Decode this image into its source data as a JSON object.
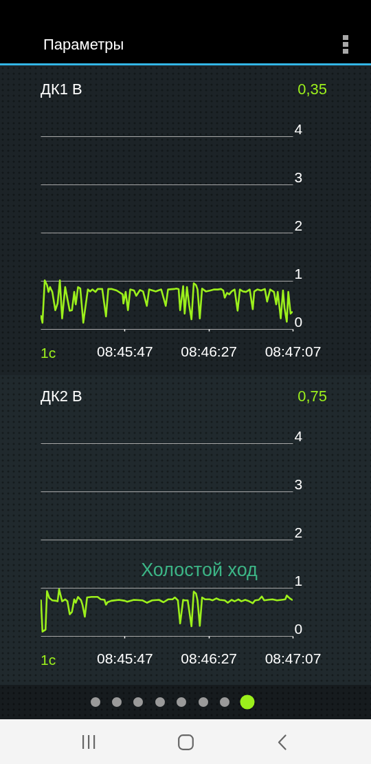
{
  "chart_data": [
    {
      "type": "line",
      "title": "ДК1 В",
      "annotations": [
        "Параметры",
        "0,35",
        "1с"
      ],
      "x": [
        8.752,
        8.7522,
        8.7525,
        8.7528,
        8.753,
        8.7532,
        8.7535,
        8.7539,
        8.7542,
        8.7545,
        8.7548,
        8.7552,
        8.7558,
        8.7561,
        8.7564,
        8.7566,
        8.7569,
        8.7572,
        8.7576,
        8.7578,
        8.7582,
        8.7585,
        8.7588,
        8.7592,
        8.7595,
        8.7601,
        8.7606,
        8.7609,
        8.7614,
        8.762,
        8.7628,
        8.7629,
        8.7632,
        8.7635,
        8.7638,
        8.7643,
        8.7646,
        8.7651,
        8.7655,
        8.766,
        8.7663,
        8.7672,
        8.7675,
        8.7679,
        8.7685,
        8.7688,
        8.7696,
        8.7699,
        8.7702,
        8.7704,
        8.7708,
        8.771,
        8.7713,
        8.7716,
        8.7719,
        8.7722,
        8.7725,
        8.7727,
        8.773,
        8.7733,
        8.7738,
        8.7744,
        8.7749,
        8.7754,
        8.7758,
        8.7761,
        8.7763,
        8.7766,
        8.7769,
        8.7772,
        8.7776,
        8.778,
        8.7783,
        8.7787,
        8.7791,
        8.7796,
        8.78,
        8.7802,
        8.7806,
        8.7811,
        8.7816,
        8.7819,
        8.7823,
        8.7828,
        8.7831,
        8.7833,
        8.7837,
        8.784,
        8.7842,
        8.7845,
        8.7847,
        8.785,
        8.7852
      ],
      "series": [
        {
          "color": "#9cf01c",
          "values": [
            0.27,
            0.13,
            1.01,
            0.91,
            0.77,
            0.87,
            0.77,
            0.39,
            0.53,
            1.01,
            0.22,
            0.87,
            0.38,
            0.39,
            0.77,
            0.51,
            0.87,
            0.84,
            0.13,
            0.37,
            0.82,
            0.78,
            0.82,
            0.77,
            0.83,
            0.83,
            0.26,
            0.83,
            0.83,
            0.8,
            0.72,
            0.53,
            0.77,
            0.39,
            0.82,
            0.8,
            0.69,
            0.81,
            0.78,
            0.48,
            0.82,
            0.78,
            0.8,
            0.82,
            0.48,
            0.82,
            0.83,
            0.84,
            0.83,
            0.39,
            0.89,
            0.32,
            0.87,
            0.49,
            0.2,
            0.95,
            0.91,
            0.82,
            0.22,
            0.84,
            0.78,
            0.8,
            0.82,
            0.82,
            0.83,
            0.8,
            0.65,
            0.75,
            0.72,
            0.78,
            0.82,
            0.38,
            0.82,
            0.78,
            0.77,
            0.82,
            0.41,
            0.78,
            0.82,
            0.8,
            0.83,
            0.57,
            0.82,
            0.77,
            0.51,
            0.77,
            0.22,
            0.8,
            0.44,
            0.15,
            0.77,
            0.32,
            0.35
          ]
        }
      ],
      "xlim": [
        8.751944,
        8.785278
      ],
      "xticks": [
        {
          "value": 8.763056,
          "label": "08:45:47"
        },
        {
          "value": 8.774167,
          "label": "08:46:27"
        },
        {
          "value": 8.785278,
          "label": "08:47:07"
        }
      ],
      "ylim": [
        0,
        4
      ],
      "yticks": [
        0,
        1,
        2,
        3,
        4
      ],
      "grid": "y"
    },
    {
      "type": "line",
      "title": "ДК2 В",
      "annotations": [
        "0,75",
        "Холостой ход",
        "1с"
      ],
      "x": [
        8.752,
        8.7522,
        8.7526,
        8.7528,
        8.7531,
        8.7535,
        8.754,
        8.7542,
        8.7544,
        8.7548,
        8.7552,
        8.7555,
        8.7558,
        8.7561,
        8.7564,
        8.7566,
        8.7569,
        8.7573,
        8.7575,
        8.7578,
        8.7581,
        8.7587,
        8.7595,
        8.7599,
        8.7604,
        8.7606,
        8.7608,
        8.7613,
        8.7623,
        8.7631,
        8.7634,
        8.7643,
        8.7654,
        8.766,
        8.7667,
        8.7676,
        8.7682,
        8.7688,
        8.7694,
        8.7697,
        8.7701,
        8.7704,
        8.7708,
        8.771,
        8.7714,
        8.7719,
        8.7722,
        8.7725,
        8.7727,
        8.773,
        8.7733,
        8.7737,
        8.7743,
        8.7747,
        8.7752,
        8.7756,
        8.7763,
        8.7767,
        8.7772,
        8.7776,
        8.7781,
        8.7785,
        8.779,
        8.7794,
        8.78,
        8.7803,
        8.7808,
        8.7812,
        8.7815,
        8.782,
        8.7826,
        8.7832,
        8.7838,
        8.7843,
        8.7845,
        8.7849,
        8.7852
      ],
      "series": [
        {
          "color": "#9cf01c",
          "values": [
            0.74,
            0.09,
            0.13,
            0.93,
            0.79,
            0.74,
            0.73,
            0.72,
            0.97,
            0.72,
            0.76,
            0.72,
            0.45,
            0.5,
            0.76,
            0.69,
            0.81,
            0.74,
            0.64,
            0.4,
            0.8,
            0.81,
            0.81,
            0.76,
            0.75,
            0.65,
            0.7,
            0.73,
            0.75,
            0.73,
            0.71,
            0.75,
            0.74,
            0.69,
            0.74,
            0.75,
            0.7,
            0.76,
            0.76,
            0.8,
            0.74,
            0.26,
            0.75,
            0.74,
            0.74,
            0.2,
            0.92,
            0.88,
            0.74,
            0.21,
            0.8,
            0.76,
            0.76,
            0.74,
            0.78,
            0.75,
            0.74,
            0.69,
            0.75,
            0.72,
            0.76,
            0.72,
            0.75,
            0.73,
            0.68,
            0.74,
            0.75,
            0.82,
            0.74,
            0.75,
            0.76,
            0.74,
            0.75,
            0.76,
            0.84,
            0.78,
            0.75
          ]
        }
      ],
      "xlim": [
        8.751944,
        8.785278
      ],
      "xticks": [
        {
          "value": 8.763056,
          "label": "08:45:47"
        },
        {
          "value": 8.774167,
          "label": "08:46:27"
        },
        {
          "value": 8.785278,
          "label": "08:47:07"
        }
      ],
      "ylim": [
        0,
        4
      ],
      "yticks": [
        0,
        1,
        2,
        3,
        4
      ],
      "grid": "y"
    }
  ]
}
